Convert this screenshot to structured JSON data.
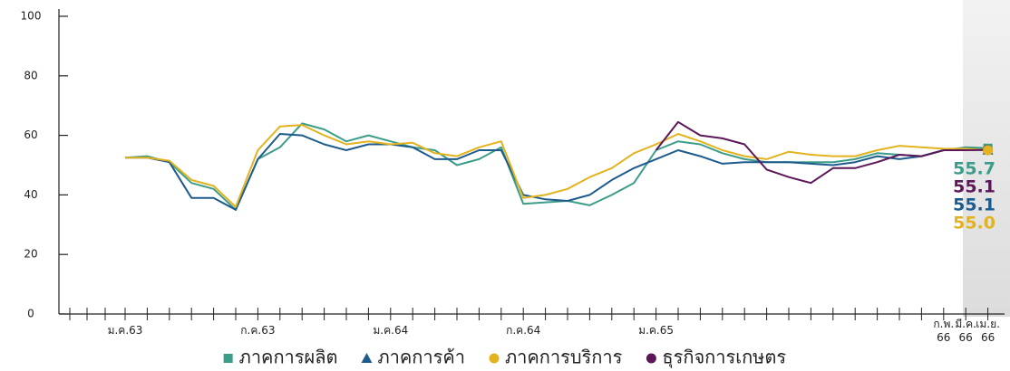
{
  "chart_data": {
    "type": "line",
    "categories": [
      "ม.ค.63",
      null,
      null,
      null,
      null,
      null,
      "ก.ค.63",
      null,
      null,
      null,
      null,
      null,
      "ม.ค.64",
      null,
      null,
      null,
      null,
      null,
      "ก.ค.64",
      null,
      null,
      null,
      null,
      null,
      "ม.ค.65",
      null,
      null,
      null,
      null,
      null,
      null,
      null,
      null,
      null,
      null,
      null,
      null,
      "ก.พ.\n66",
      "มี.ค.\n66",
      "เม.ย.\n66"
    ],
    "series": [
      {
        "name": "ภาคการผลิต",
        "color": "#3c9c8a",
        "marker": "square",
        "values": [
          52.5,
          53,
          51,
          44,
          42,
          35,
          52,
          56,
          64,
          62,
          58,
          60,
          58,
          56,
          55,
          50,
          52,
          56,
          37,
          37.5,
          38,
          36.5,
          40,
          44,
          55,
          58,
          57,
          54,
          52,
          51,
          51,
          51,
          51,
          52,
          54,
          53.5,
          53,
          55,
          56,
          55.7
        ],
        "value_labels": [
          null,
          null,
          null,
          null,
          null,
          null,
          null,
          null,
          null,
          null,
          null,
          null,
          null,
          null,
          null,
          null,
          null,
          null,
          null,
          null,
          null,
          null,
          null,
          null,
          null,
          null,
          null,
          null,
          null,
          null,
          null,
          null,
          null,
          null,
          null,
          null,
          null,
          null,
          null,
          "55.7"
        ]
      },
      {
        "name": "ภาคการค้า",
        "color": "#1d5b8c",
        "marker": "triangle",
        "values": [
          52.5,
          52.5,
          51,
          39,
          39,
          35,
          52,
          60.5,
          60,
          57,
          55,
          57,
          57,
          56,
          52,
          52,
          55,
          55,
          40,
          38.5,
          38,
          40,
          45,
          49,
          52,
          55,
          53,
          50.5,
          51,
          51,
          51,
          50.5,
          50,
          51,
          53,
          52,
          53,
          55,
          55.5,
          55.1
        ],
        "value_labels": [
          null,
          null,
          null,
          null,
          null,
          null,
          null,
          null,
          null,
          null,
          null,
          null,
          null,
          null,
          null,
          null,
          null,
          null,
          null,
          null,
          null,
          null,
          null,
          null,
          null,
          null,
          null,
          null,
          null,
          null,
          null,
          null,
          null,
          null,
          null,
          null,
          null,
          null,
          null,
          "55.1"
        ]
      },
      {
        "name": "ภาคการบริการ",
        "color": "#e3b31f",
        "marker": "circle",
        "values": [
          52.5,
          52.5,
          51.5,
          45,
          43,
          36,
          55,
          63,
          63.5,
          60,
          57,
          58,
          57,
          57.5,
          54,
          53,
          56,
          58,
          39,
          40,
          42,
          46,
          49,
          54,
          57,
          60.5,
          58,
          55,
          53,
          52,
          54.5,
          53.5,
          53,
          53,
          55,
          56.5,
          56,
          55.5,
          55.5,
          55.0
        ],
        "value_labels": [
          null,
          null,
          null,
          null,
          null,
          null,
          null,
          null,
          null,
          null,
          null,
          null,
          null,
          null,
          null,
          null,
          null,
          null,
          null,
          null,
          null,
          null,
          null,
          null,
          null,
          null,
          null,
          null,
          null,
          null,
          null,
          null,
          null,
          null,
          null,
          null,
          null,
          null,
          null,
          "55.0"
        ]
      },
      {
        "name": "ธุรกิจการเกษตร",
        "color": "#5b1758",
        "marker": "circle",
        "values": [
          null,
          null,
          null,
          null,
          null,
          null,
          null,
          null,
          null,
          null,
          null,
          null,
          null,
          null,
          null,
          null,
          null,
          null,
          null,
          null,
          null,
          null,
          null,
          null,
          55,
          64.5,
          60,
          59,
          57,
          48.5,
          46,
          44,
          49,
          49,
          51,
          53.5,
          53,
          55,
          55,
          55.1
        ],
        "value_labels": [
          null,
          null,
          null,
          null,
          null,
          null,
          null,
          null,
          null,
          null,
          null,
          null,
          null,
          null,
          null,
          null,
          null,
          null,
          null,
          null,
          null,
          null,
          null,
          null,
          null,
          null,
          null,
          null,
          null,
          null,
          null,
          null,
          null,
          null,
          null,
          null,
          null,
          null,
          null,
          "55.1"
        ]
      }
    ],
    "ylim": [
      0,
      100
    ],
    "yticks": [
      0,
      20,
      40,
      60,
      80,
      100
    ]
  }
}
